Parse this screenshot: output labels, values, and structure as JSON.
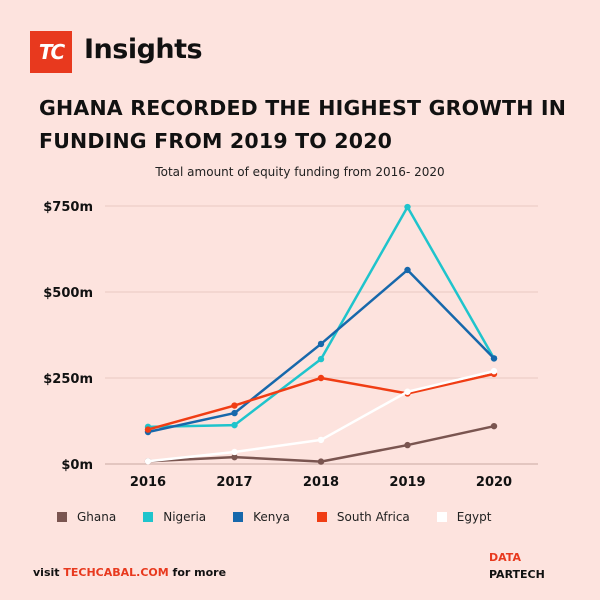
{
  "brand": {
    "logo_text": "TC",
    "name": "Insights"
  },
  "headline": "GHANA RECORDED THE HIGHEST GROWTH IN FUNDING FROM 2019 TO 2020",
  "footer": {
    "prefix": "visit ",
    "site": "TECHCABAL.COM",
    "suffix": " for more"
  },
  "source": {
    "label": "DATA",
    "name": "PARTECH"
  },
  "chart_data": {
    "type": "line",
    "title": "Total amount of equity funding from 2016- 2020",
    "xlabel": "",
    "ylabel": "",
    "x": [
      "2016",
      "2017",
      "2018",
      "2019",
      "2020"
    ],
    "ylim": [
      0,
      850
    ],
    "yticks": [
      0,
      250,
      500,
      750
    ],
    "ytick_labels": [
      "$0m",
      "$250m",
      "$500m",
      "$750m"
    ],
    "grid": true,
    "legend": "bottom",
    "series": [
      {
        "name": "Ghana",
        "color": "#7a5550",
        "values": [
          8,
          20,
          7,
          55,
          110
        ]
      },
      {
        "name": "Nigeria",
        "color": "#1fc4cc",
        "values": [
          108,
          113,
          305,
          747,
          307
        ]
      },
      {
        "name": "Kenya",
        "color": "#1768ab",
        "values": [
          93,
          148,
          349,
          564,
          307
        ]
      },
      {
        "name": "South Africa",
        "color": "#f03d14",
        "values": [
          100,
          170,
          250,
          205,
          262
        ]
      },
      {
        "name": "Egypt",
        "color": "#ffffff",
        "values": [
          8,
          35,
          70,
          210,
          270
        ]
      }
    ]
  }
}
